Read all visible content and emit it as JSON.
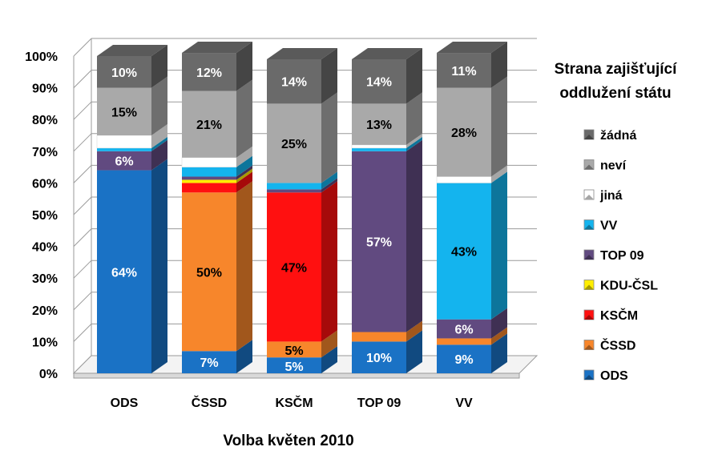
{
  "chart_data": {
    "type": "bar",
    "stacked": true,
    "three_d": true,
    "percent_scale": true,
    "xlabel": "Volba květen 2010",
    "ylabel": "",
    "ylim": [
      0,
      100
    ],
    "yticks": [
      "0%",
      "10%",
      "20%",
      "30%",
      "40%",
      "50%",
      "60%",
      "70%",
      "80%",
      "90%",
      "100%"
    ],
    "grid": true,
    "categories": [
      "ODS",
      "ČSSD",
      "KSČM",
      "TOP 09",
      "VV"
    ],
    "legend": {
      "title": "Strana zajišťující oddlužení státu",
      "position": "right",
      "order": [
        "žádná",
        "neví",
        "jiná",
        "VV",
        "TOP 09",
        "KDU-ČSL",
        "KSČM",
        "ČSSD",
        "ODS"
      ]
    },
    "series": [
      {
        "name": "ODS",
        "color": "#1a72c5",
        "values": [
          64,
          7,
          5,
          10,
          9
        ],
        "labels": [
          "64%",
          "7%",
          "5%",
          "10%",
          "9%"
        ]
      },
      {
        "name": "ČSSD",
        "color": "#f7862b",
        "values": [
          0,
          50,
          5,
          3,
          2
        ],
        "labels": [
          "",
          "50%",
          "5%",
          "",
          ""
        ]
      },
      {
        "name": "KSČM",
        "color": "#ff1010",
        "values": [
          0,
          3,
          47,
          0,
          0
        ],
        "labels": [
          "",
          "",
          "47%",
          "",
          ""
        ]
      },
      {
        "name": "KDU-ČSL",
        "color": "#ffee00",
        "values": [
          0,
          1,
          0,
          0,
          0
        ],
        "labels": [
          "",
          "",
          "",
          "",
          ""
        ]
      },
      {
        "name": "TOP 09",
        "color": "#614a80",
        "values": [
          6,
          1,
          1,
          57,
          6
        ],
        "labels": [
          "6%",
          "",
          "",
          "57%",
          "6%"
        ]
      },
      {
        "name": "VV",
        "color": "#14b4ee",
        "values": [
          1,
          3,
          2,
          1,
          43
        ],
        "labels": [
          "",
          "",
          "",
          "",
          "43%"
        ]
      },
      {
        "name": "jiná",
        "color": "#ffffff",
        "values": [
          4,
          3,
          0,
          1,
          2
        ],
        "labels": [
          "",
          "",
          "",
          "",
          ""
        ]
      },
      {
        "name": "neví",
        "color": "#a9a9a9",
        "values": [
          15,
          21,
          25,
          13,
          28
        ],
        "labels": [
          "15%",
          "21%",
          "25%",
          "13%",
          "28%"
        ]
      },
      {
        "name": "žádná",
        "color": "#6a6a6a",
        "values": [
          10,
          12,
          14,
          14,
          11
        ],
        "labels": [
          "10%",
          "12%",
          "14%",
          "14%",
          "11%"
        ]
      }
    ]
  }
}
